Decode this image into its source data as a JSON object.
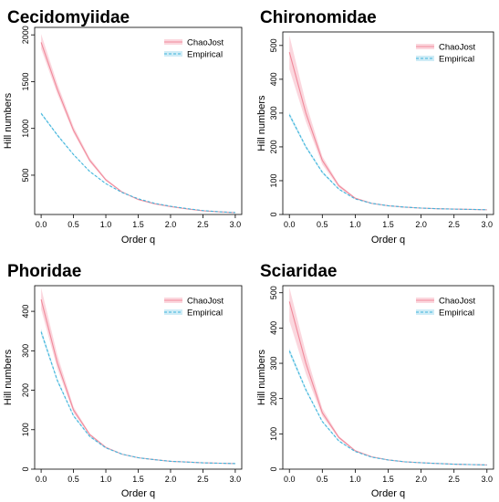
{
  "colors": {
    "chaojost": "#f08a9b",
    "chaojost_band": "#f7b6c2",
    "empirical": "#3fb5dc",
    "empirical_band": "#a7dcef",
    "axis": "#000000"
  },
  "chart_data": [
    {
      "type": "line",
      "title": "Cecidomyiidae",
      "xlabel": "Order q",
      "ylabel": "Hill numbers",
      "xlim": [
        -0.1,
        3.1
      ],
      "ylim": [
        80,
        2080
      ],
      "xticks": [
        0.0,
        0.5,
        1.0,
        1.5,
        2.0,
        2.5,
        3.0
      ],
      "xtick_labels": [
        "0.0",
        "0.5",
        "1.0",
        "1.5",
        "2.0",
        "2.5",
        "3.0"
      ],
      "yticks": [
        500,
        1000,
        1500,
        2000
      ],
      "ytick_labels": [
        "500",
        "1000",
        "1500",
        "2000"
      ],
      "legend": {
        "position": "top-right",
        "entries": [
          "ChaoJost",
          "Empirical"
        ]
      },
      "x": [
        0.0,
        0.25,
        0.5,
        0.75,
        1.0,
        1.25,
        1.5,
        1.75,
        2.0,
        2.25,
        2.5,
        2.75,
        3.0
      ],
      "series": [
        {
          "name": "ChaoJost",
          "values": [
            1920,
            1420,
            980,
            660,
            450,
            320,
            240,
            195,
            165,
            140,
            120,
            108,
            100
          ],
          "lower": [
            1850,
            1370,
            950,
            640,
            440,
            315,
            237,
            193,
            163,
            139,
            119,
            107,
            99
          ],
          "upper": [
            2010,
            1480,
            1020,
            685,
            465,
            327,
            245,
            198,
            167,
            142,
            121,
            109,
            101
          ]
        },
        {
          "name": "Empirical",
          "values": [
            1160,
            930,
            720,
            540,
            410,
            315,
            248,
            200,
            168,
            143,
            122,
            109,
            100
          ],
          "lower": [
            1145,
            918,
            712,
            534,
            406,
            312,
            246,
            199,
            167,
            142,
            121,
            108,
            99
          ],
          "upper": [
            1175,
            942,
            728,
            546,
            414,
            318,
            250,
            201,
            169,
            144,
            123,
            110,
            101
          ]
        }
      ]
    },
    {
      "type": "line",
      "title": "Chironomidae",
      "xlabel": "Order q",
      "ylabel": "Hill numbers",
      "xlim": [
        -0.1,
        3.1
      ],
      "ylim": [
        0,
        540
      ],
      "xticks": [
        0.0,
        0.5,
        1.0,
        1.5,
        2.0,
        2.5,
        3.0
      ],
      "xtick_labels": [
        "0.0",
        "0.5",
        "1.0",
        "1.5",
        "2.0",
        "2.5",
        "3.0"
      ],
      "yticks": [
        0,
        100,
        200,
        300,
        400,
        500
      ],
      "ytick_labels": [
        "0",
        "100",
        "200",
        "300",
        "400",
        "500"
      ],
      "legend": {
        "position": "top-right",
        "entries": [
          "ChaoJost",
          "Empirical"
        ]
      },
      "x": [
        0.0,
        0.25,
        0.5,
        0.75,
        1.0,
        1.25,
        1.5,
        1.75,
        2.0,
        2.25,
        2.5,
        2.75,
        3.0
      ],
      "series": [
        {
          "name": "ChaoJost",
          "values": [
            480,
            300,
            160,
            85,
            48,
            33,
            26,
            22,
            19,
            17,
            16,
            15,
            14
          ],
          "lower": [
            430,
            275,
            148,
            80,
            46,
            32,
            25,
            21,
            18,
            16,
            15,
            14,
            13
          ],
          "upper": [
            530,
            330,
            172,
            90,
            50,
            34,
            27,
            23,
            20,
            18,
            17,
            16,
            15
          ]
        },
        {
          "name": "Empirical",
          "values": [
            295,
            200,
            125,
            75,
            46,
            33,
            26,
            22,
            19,
            17,
            16,
            15,
            14
          ],
          "lower": [
            288,
            195,
            121,
            73,
            45,
            32,
            25,
            21,
            18,
            16,
            15,
            14,
            13
          ],
          "upper": [
            302,
            205,
            129,
            77,
            47,
            34,
            27,
            23,
            20,
            18,
            17,
            16,
            15
          ]
        }
      ]
    },
    {
      "type": "line",
      "title": "Phoridae",
      "xlabel": "Order q",
      "ylabel": "Hill numbers",
      "xlim": [
        -0.1,
        3.1
      ],
      "ylim": [
        0,
        465
      ],
      "xticks": [
        0.0,
        0.5,
        1.0,
        1.5,
        2.0,
        2.5,
        3.0
      ],
      "xtick_labels": [
        "0.0",
        "0.5",
        "1.0",
        "1.5",
        "2.0",
        "2.5",
        "3.0"
      ],
      "yticks": [
        0,
        100,
        200,
        300,
        400
      ],
      "ytick_labels": [
        "0",
        "100",
        "200",
        "300",
        "400"
      ],
      "legend": {
        "position": "top-right",
        "entries": [
          "ChaoJost",
          "Empirical"
        ]
      },
      "x": [
        0.0,
        0.25,
        0.5,
        0.75,
        1.0,
        1.25,
        1.5,
        1.75,
        2.0,
        2.25,
        2.5,
        2.75,
        3.0
      ],
      "series": [
        {
          "name": "ChaoJost",
          "values": [
            430,
            270,
            150,
            88,
            55,
            38,
            29,
            24,
            20,
            18,
            16,
            15,
            14
          ],
          "lower": [
            405,
            255,
            143,
            85,
            53,
            37,
            28,
            23,
            19,
            17,
            15,
            14,
            13
          ],
          "upper": [
            460,
            290,
            158,
            91,
            57,
            39,
            30,
            25,
            21,
            19,
            17,
            16,
            15
          ]
        },
        {
          "name": "Empirical",
          "values": [
            348,
            225,
            135,
            83,
            54,
            38,
            29,
            24,
            20,
            18,
            16,
            15,
            14
          ],
          "lower": [
            340,
            220,
            132,
            81,
            53,
            37,
            28,
            23,
            19,
            17,
            15,
            14,
            13
          ],
          "upper": [
            356,
            230,
            138,
            85,
            55,
            39,
            30,
            25,
            21,
            19,
            17,
            16,
            15
          ]
        }
      ]
    },
    {
      "type": "line",
      "title": "Sciaridae",
      "xlabel": "Order q",
      "ylabel": "Hill numbers",
      "xlim": [
        -0.1,
        3.1
      ],
      "ylim": [
        0,
        520
      ],
      "xticks": [
        0.0,
        0.5,
        1.0,
        1.5,
        2.0,
        2.5,
        3.0
      ],
      "xtick_labels": [
        "0.0",
        "0.5",
        "1.0",
        "1.5",
        "2.0",
        "2.5",
        "3.0"
      ],
      "yticks": [
        0,
        100,
        200,
        300,
        400,
        500
      ],
      "ytick_labels": [
        "0",
        "100",
        "200",
        "300",
        "400",
        "500"
      ],
      "legend": {
        "position": "top-right",
        "entries": [
          "ChaoJost",
          "Empirical"
        ]
      },
      "x": [
        0.0,
        0.25,
        0.5,
        0.75,
        1.0,
        1.25,
        1.5,
        1.75,
        2.0,
        2.25,
        2.5,
        2.75,
        3.0
      ],
      "series": [
        {
          "name": "ChaoJost",
          "values": [
            475,
            300,
            160,
            90,
            52,
            35,
            26,
            21,
            18,
            16,
            14,
            13,
            12
          ],
          "lower": [
            420,
            270,
            150,
            86,
            50,
            34,
            25,
            20,
            17,
            15,
            13,
            12,
            11
          ],
          "upper": [
            515,
            330,
            172,
            94,
            54,
            36,
            27,
            22,
            19,
            17,
            15,
            14,
            13
          ]
        },
        {
          "name": "Empirical",
          "values": [
            335,
            225,
            135,
            80,
            50,
            34,
            26,
            21,
            18,
            16,
            14,
            13,
            12
          ],
          "lower": [
            327,
            220,
            132,
            78,
            49,
            33,
            25,
            20,
            17,
            15,
            13,
            12,
            11
          ],
          "upper": [
            343,
            230,
            138,
            82,
            51,
            35,
            27,
            22,
            19,
            17,
            15,
            14,
            13
          ]
        }
      ]
    }
  ]
}
